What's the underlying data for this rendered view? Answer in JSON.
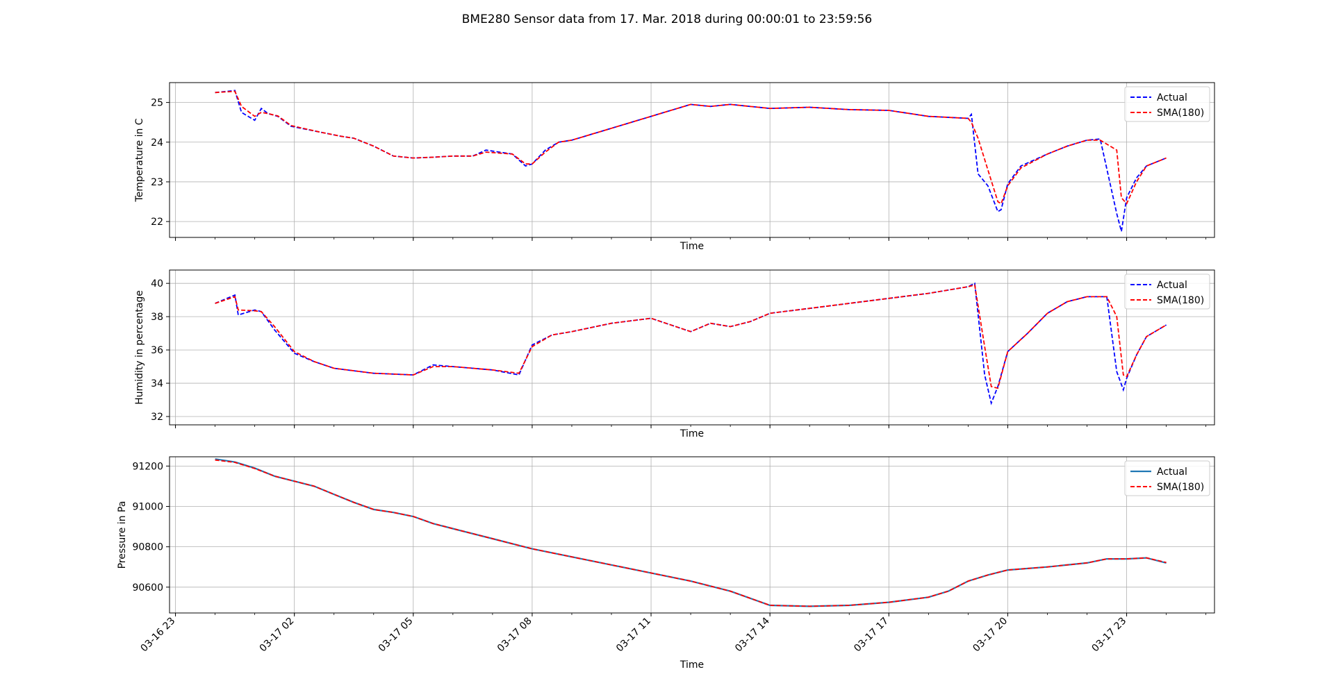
{
  "figure": {
    "title": "BME280 Sensor data from 17. Mar. 2018 during 00:00:01 to 23:59:56",
    "x_tick_labels": [
      "03-16 23",
      "03-17 02",
      "03-17 05",
      "03-17 08",
      "03-17 11",
      "03-17 14",
      "03-17 17",
      "03-17 20",
      "03-17 23"
    ]
  },
  "chart_data": [
    {
      "type": "line",
      "xlabel": "Time",
      "ylabel": "Temperature in C",
      "ylim": [
        21.6,
        25.5
      ],
      "xlim": [
        "2018-03-16 22:51",
        "2018-03-18 01:13"
      ],
      "yticks": [
        22,
        23,
        24,
        25
      ],
      "grid": true,
      "legend_position": "upper right",
      "x": [
        "2018-03-17 00:00",
        "2018-03-17 00:30",
        "2018-03-17 00:40",
        "2018-03-17 01:00",
        "2018-03-17 01:10",
        "2018-03-17 01:20",
        "2018-03-17 01:35",
        "2018-03-17 01:55",
        "2018-03-17 02:10",
        "2018-03-17 02:40",
        "2018-03-17 03:10",
        "2018-03-17 03:30",
        "2018-03-17 04:00",
        "2018-03-17 04:30",
        "2018-03-17 05:00",
        "2018-03-17 05:30",
        "2018-03-17 06:00",
        "2018-03-17 06:30",
        "2018-03-17 06:50",
        "2018-03-17 07:30",
        "2018-03-17 07:50",
        "2018-03-17 08:00",
        "2018-03-17 08:20",
        "2018-03-17 08:40",
        "2018-03-17 09:00",
        "2018-03-17 10:00",
        "2018-03-17 11:00",
        "2018-03-17 12:00",
        "2018-03-17 12:30",
        "2018-03-17 13:00",
        "2018-03-17 14:00",
        "2018-03-17 15:00",
        "2018-03-17 16:00",
        "2018-03-17 17:00",
        "2018-03-17 18:00",
        "2018-03-17 19:00",
        "2018-03-17 19:05",
        "2018-03-17 19:15",
        "2018-03-17 19:30",
        "2018-03-17 19:45",
        "2018-03-17 19:50",
        "2018-03-17 20:00",
        "2018-03-17 20:20",
        "2018-03-17 21:00",
        "2018-03-17 21:30",
        "2018-03-17 22:00",
        "2018-03-17 22:20",
        "2018-03-17 22:45",
        "2018-03-17 22:52",
        "2018-03-17 23:00",
        "2018-03-17 23:15",
        "2018-03-17 23:30",
        "2018-03-18 00:00"
      ],
      "series": [
        {
          "name": "Actual",
          "color": "#0000ff",
          "style": "dashed",
          "values": [
            25.25,
            25.3,
            24.75,
            24.55,
            24.85,
            24.72,
            24.65,
            24.4,
            24.35,
            24.25,
            24.15,
            24.1,
            23.9,
            23.65,
            23.6,
            23.62,
            23.65,
            23.65,
            23.8,
            23.7,
            23.4,
            23.45,
            23.8,
            24.0,
            24.05,
            24.35,
            24.65,
            24.95,
            24.9,
            24.95,
            24.85,
            24.88,
            24.82,
            24.8,
            24.65,
            24.6,
            24.7,
            23.2,
            22.9,
            22.25,
            22.3,
            22.95,
            23.4,
            23.7,
            23.9,
            24.05,
            24.08,
            22.2,
            21.75,
            22.6,
            23.1,
            23.4,
            23.6
          ]
        },
        {
          "name": "SMA(180)",
          "color": "#ff0000",
          "style": "dashed",
          "values": [
            25.25,
            25.28,
            24.9,
            24.65,
            24.75,
            24.72,
            24.66,
            24.42,
            24.36,
            24.25,
            24.15,
            24.1,
            23.9,
            23.65,
            23.6,
            23.62,
            23.65,
            23.65,
            23.75,
            23.7,
            23.45,
            23.45,
            23.75,
            24.0,
            24.05,
            24.35,
            24.65,
            24.95,
            24.9,
            24.95,
            24.85,
            24.88,
            24.82,
            24.8,
            24.65,
            24.6,
            24.5,
            24.1,
            23.3,
            22.5,
            22.45,
            22.9,
            23.35,
            23.7,
            23.9,
            24.05,
            24.05,
            23.8,
            22.6,
            22.45,
            23.0,
            23.4,
            23.6
          ]
        }
      ]
    },
    {
      "type": "line",
      "xlabel": "Time",
      "ylabel": "Humidity in percentage",
      "ylim": [
        31.5,
        40.8
      ],
      "xlim": [
        "2018-03-16 22:51",
        "2018-03-18 01:13"
      ],
      "yticks": [
        32,
        34,
        36,
        38,
        40
      ],
      "grid": true,
      "legend_position": "upper right",
      "x": [
        "2018-03-17 00:00",
        "2018-03-17 00:30",
        "2018-03-17 00:35",
        "2018-03-17 01:00",
        "2018-03-17 01:10",
        "2018-03-17 01:30",
        "2018-03-17 02:00",
        "2018-03-17 02:30",
        "2018-03-17 03:00",
        "2018-03-17 04:00",
        "2018-03-17 05:00",
        "2018-03-17 05:30",
        "2018-03-17 06:00",
        "2018-03-17 06:30",
        "2018-03-17 07:00",
        "2018-03-17 07:40",
        "2018-03-17 08:00",
        "2018-03-17 08:30",
        "2018-03-17 09:00",
        "2018-03-17 10:00",
        "2018-03-17 11:00",
        "2018-03-17 12:00",
        "2018-03-17 12:30",
        "2018-03-17 13:00",
        "2018-03-17 13:30",
        "2018-03-17 14:00",
        "2018-03-17 15:00",
        "2018-03-17 16:00",
        "2018-03-17 17:00",
        "2018-03-17 18:00",
        "2018-03-17 19:00",
        "2018-03-17 19:10",
        "2018-03-17 19:25",
        "2018-03-17 19:35",
        "2018-03-17 19:45",
        "2018-03-17 20:00",
        "2018-03-17 20:30",
        "2018-03-17 21:00",
        "2018-03-17 21:30",
        "2018-03-17 22:00",
        "2018-03-17 22:30",
        "2018-03-17 22:45",
        "2018-03-17 22:55",
        "2018-03-17 23:00",
        "2018-03-17 23:15",
        "2018-03-17 23:30",
        "2018-03-18 00:00"
      ],
      "series": [
        {
          "name": "Actual",
          "color": "#0000ff",
          "style": "dashed",
          "values": [
            38.8,
            39.3,
            38.1,
            38.4,
            38.3,
            37.2,
            35.8,
            35.3,
            34.9,
            34.6,
            34.5,
            35.1,
            35.0,
            34.9,
            34.8,
            34.5,
            36.3,
            36.9,
            37.1,
            37.6,
            37.9,
            37.1,
            37.6,
            37.4,
            37.7,
            38.2,
            38.5,
            38.8,
            39.1,
            39.4,
            39.8,
            40.0,
            34.5,
            32.8,
            33.8,
            35.9,
            37.0,
            38.2,
            38.9,
            39.2,
            39.2,
            34.7,
            33.6,
            34.3,
            35.7,
            36.8,
            37.5
          ]
        },
        {
          "name": "SMA(180)",
          "color": "#ff0000",
          "style": "dashed",
          "values": [
            38.8,
            39.2,
            38.4,
            38.35,
            38.3,
            37.4,
            35.9,
            35.3,
            34.9,
            34.6,
            34.5,
            35.0,
            35.0,
            34.9,
            34.8,
            34.6,
            36.2,
            36.9,
            37.1,
            37.6,
            37.9,
            37.1,
            37.6,
            37.4,
            37.7,
            38.2,
            38.5,
            38.8,
            39.1,
            39.4,
            39.8,
            39.9,
            36.2,
            33.8,
            33.7,
            35.9,
            37.0,
            38.2,
            38.9,
            39.2,
            39.2,
            38.0,
            34.5,
            34.4,
            35.7,
            36.8,
            37.5
          ]
        }
      ]
    },
    {
      "type": "line",
      "xlabel": "Time",
      "ylabel": "Pressure in Pa",
      "ylim": [
        90472,
        91246
      ],
      "xlim": [
        "2018-03-16 22:51",
        "2018-03-18 01:13"
      ],
      "yticks": [
        90600,
        90800,
        91000,
        91200
      ],
      "grid": true,
      "legend_position": "upper right",
      "x": [
        "2018-03-17 00:00",
        "2018-03-17 00:30",
        "2018-03-17 01:00",
        "2018-03-17 01:30",
        "2018-03-17 02:00",
        "2018-03-17 02:30",
        "2018-03-17 03:00",
        "2018-03-17 03:30",
        "2018-03-17 04:00",
        "2018-03-17 04:30",
        "2018-03-17 05:00",
        "2018-03-17 05:30",
        "2018-03-17 06:00",
        "2018-03-17 07:00",
        "2018-03-17 08:00",
        "2018-03-17 09:00",
        "2018-03-17 10:00",
        "2018-03-17 11:00",
        "2018-03-17 12:00",
        "2018-03-17 13:00",
        "2018-03-17 14:00",
        "2018-03-17 15:00",
        "2018-03-17 16:00",
        "2018-03-17 17:00",
        "2018-03-17 18:00",
        "2018-03-17 18:30",
        "2018-03-17 19:00",
        "2018-03-17 19:30",
        "2018-03-17 20:00",
        "2018-03-17 21:00",
        "2018-03-17 22:00",
        "2018-03-17 22:30",
        "2018-03-17 23:00",
        "2018-03-17 23:30",
        "2018-03-18 00:00"
      ],
      "series": [
        {
          "name": "Actual",
          "color": "#1f77b4",
          "style": "solid",
          "values": [
            91235,
            91220,
            91190,
            91150,
            91125,
            91100,
            91060,
            91020,
            90985,
            90970,
            90950,
            90915,
            90890,
            90840,
            90790,
            90750,
            90710,
            90670,
            90630,
            90580,
            90510,
            90505,
            90510,
            90525,
            90550,
            90580,
            90630,
            90660,
            90685,
            90700,
            90720,
            90740,
            90740,
            90745,
            90720
          ]
        },
        {
          "name": "SMA(180)",
          "color": "#ff0000",
          "style": "dashed",
          "values": [
            91230,
            91218,
            91188,
            91150,
            91125,
            91100,
            91060,
            91020,
            90985,
            90970,
            90950,
            90915,
            90890,
            90840,
            90790,
            90750,
            90710,
            90670,
            90630,
            90580,
            90510,
            90505,
            90510,
            90525,
            90550,
            90580,
            90630,
            90660,
            90685,
            90700,
            90720,
            90740,
            90740,
            90745,
            90722
          ]
        }
      ]
    }
  ]
}
